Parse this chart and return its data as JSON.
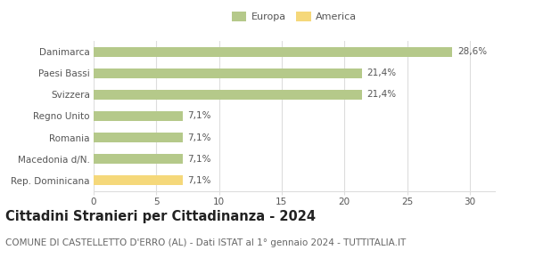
{
  "categories": [
    "Rep. Dominicana",
    "Macedonia d/N.",
    "Romania",
    "Regno Unito",
    "Svizzera",
    "Paesi Bassi",
    "Danimarca"
  ],
  "values": [
    7.1,
    7.1,
    7.1,
    7.1,
    21.4,
    21.4,
    28.6
  ],
  "labels": [
    "7,1%",
    "7,1%",
    "7,1%",
    "7,1%",
    "21,4%",
    "21,4%",
    "28,6%"
  ],
  "bar_colors": [
    "#f5d87a",
    "#b5c98a",
    "#b5c98a",
    "#b5c98a",
    "#b5c98a",
    "#b5c98a",
    "#b5c98a"
  ],
  "legend_items": [
    {
      "label": "Europa",
      "color": "#b5c98a"
    },
    {
      "label": "America",
      "color": "#f5d87a"
    }
  ],
  "title": "Cittadini Stranieri per Cittadinanza - 2024",
  "subtitle": "COMUNE DI CASTELLETTO D'ERRO (AL) - Dati ISTAT al 1° gennaio 2024 - TUTTITALIA.IT",
  "xlim": [
    0,
    32
  ],
  "xticks": [
    0,
    5,
    10,
    15,
    20,
    25,
    30
  ],
  "background_color": "#ffffff",
  "grid_color": "#dddddd",
  "bar_height": 0.45,
  "label_fontsize": 7.5,
  "tick_fontsize": 7.5,
  "title_fontsize": 10.5,
  "subtitle_fontsize": 7.5
}
